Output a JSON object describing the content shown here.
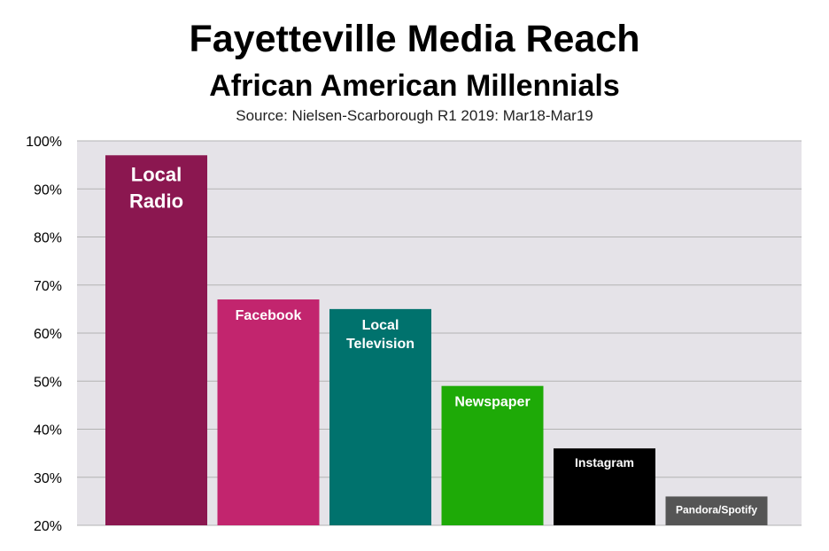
{
  "chart_data": {
    "type": "bar",
    "title": "Fayetteville Media Reach",
    "subtitle": "African American Millennials",
    "source": "Source: Nielsen-Scarborough R1 2019: Mar18-Mar19",
    "categories": [
      "Local Radio",
      "Facebook",
      "Local Television",
      "Newspaper",
      "Instagram",
      "Pandora/Spotify"
    ],
    "label_lines": [
      [
        "Local",
        "Radio"
      ],
      [
        "Facebook"
      ],
      [
        "Local",
        "Television"
      ],
      [
        "Newspaper"
      ],
      [
        "Instagram"
      ],
      [
        "Pandora/Spotify"
      ]
    ],
    "values": [
      97,
      67,
      65,
      49,
      36,
      26
    ],
    "colors": [
      "#8b1750",
      "#c2256e",
      "#00726d",
      "#1eaa07",
      "#000000",
      "#555555"
    ],
    "ylim": [
      20,
      100
    ],
    "yticks": [
      20,
      30,
      40,
      50,
      60,
      70,
      80,
      90,
      100
    ],
    "ytick_labels": [
      "20%",
      "30%",
      "40%",
      "50%",
      "60%",
      "70%",
      "80%",
      "90%",
      "100%"
    ],
    "grid": true,
    "plot_background": "#e5e3e8"
  }
}
